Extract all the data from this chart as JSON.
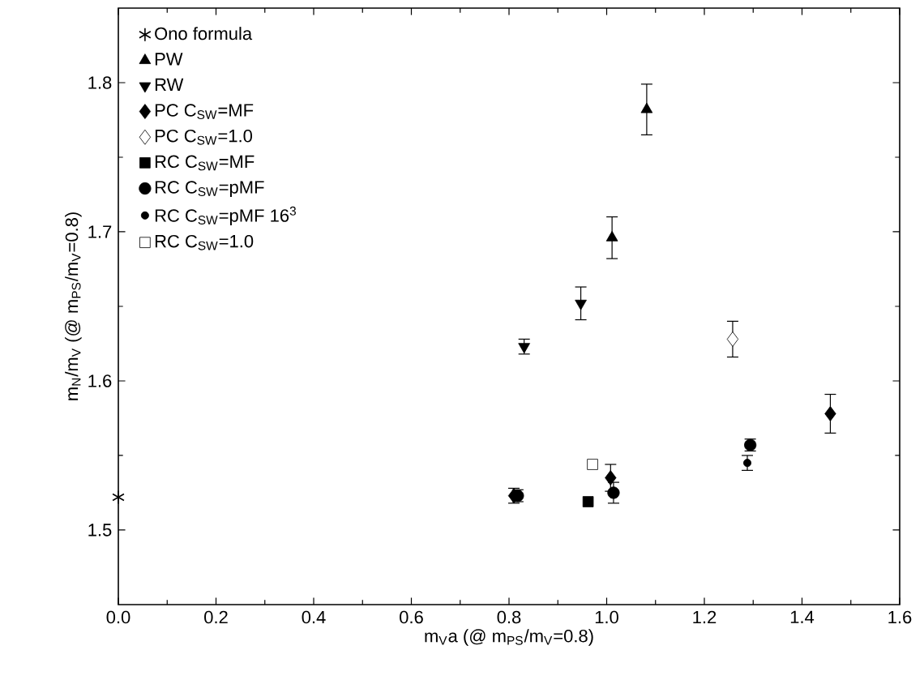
{
  "chart_data": {
    "type": "scatter",
    "xlabel": "m$_{V}$a  (@ m$_{PS}$/m$_{V}$=0.8)",
    "ylabel": "m$_{N}$/m$_{V}$  (@ m$_{PS}$/m$_{V}$=0.8)",
    "xlim": [
      0,
      1.6
    ],
    "ylim": [
      1.45,
      1.85
    ],
    "xticks": [
      {
        "value": 0,
        "label": "0.0"
      },
      0.2,
      0.4,
      0.6,
      0.8,
      {
        "value": 1,
        "label": "1.0"
      },
      1.2,
      1.4,
      1.6
    ],
    "yticks": [
      1.5,
      1.6,
      1.7,
      1.8
    ],
    "grid": false,
    "legend": "top left",
    "series": [
      {
        "name": "Ono formula",
        "color": "#000000",
        "marker": "cross",
        "x": [
          0
        ],
        "values": [
          1.522
        ]
      },
      {
        "name": "PW",
        "color": "#000000",
        "marker": "triangle",
        "x": [
          1.011,
          1.082
        ],
        "values": [
          1.696,
          1.782
        ],
        "errors": [
          0.014,
          0.017
        ]
      },
      {
        "name": "RW",
        "color": "#000000",
        "marker": "triangle-down",
        "x": [
          0.831,
          0.947
        ],
        "values": [
          1.623,
          1.652
        ],
        "errors": [
          0.005,
          0.011
        ]
      },
      {
        "name": "PC C$_{SW}$=MF",
        "color": "#000000",
        "marker": "diamond",
        "x": [
          0.81,
          1.008,
          1.458
        ],
        "values": [
          1.523,
          1.535,
          1.578
        ],
        "errors": [
          0.005,
          0.009,
          0.013
        ]
      },
      {
        "name": "PC C$_{SW}$=1.0",
        "color": "#000000",
        "marker": "diamond-open",
        "x": [
          1.258
        ],
        "values": [
          1.628
        ],
        "errors": [
          0.012
        ]
      },
      {
        "name": "RC C$_{SW}$=MF",
        "color": "#000000",
        "marker": "square",
        "x": [
          0.962
        ],
        "values": [
          1.519
        ]
      },
      {
        "name": "RC C$_{SW}$=pMF",
        "color": "#000000",
        "marker": "circle",
        "x": [
          0.818,
          1.014,
          1.294
        ],
        "values": [
          1.523,
          1.525,
          1.557
        ],
        "errors": [
          0.004,
          0.007,
          0.004
        ]
      },
      {
        "name": "RC C$_{SW}$=pMF 16$^{3}$",
        "color": "#000000",
        "marker": "dot",
        "x": [
          1.288
        ],
        "values": [
          1.545
        ],
        "errors": [
          0.005
        ]
      },
      {
        "name": "RC C$_{SW}$=1.0",
        "color": "#000000",
        "marker": "square-open",
        "x": [
          0.971
        ],
        "values": [
          1.544
        ]
      }
    ]
  }
}
